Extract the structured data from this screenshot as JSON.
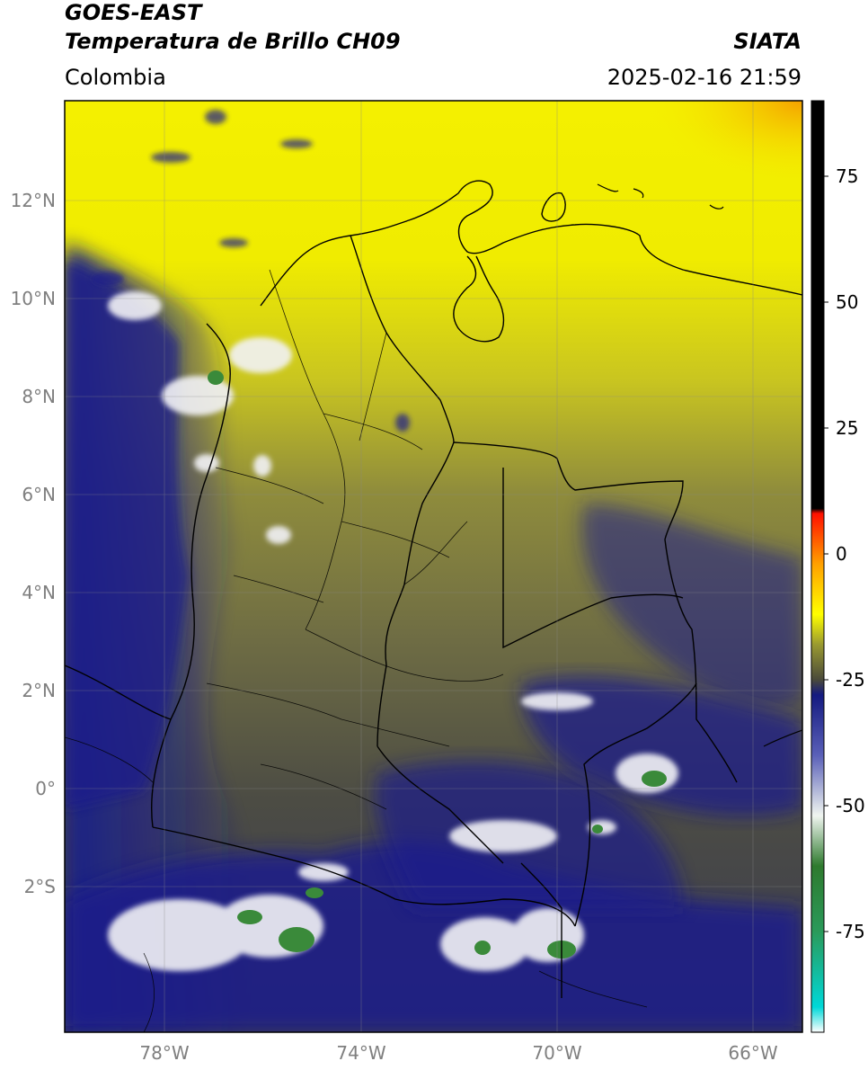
{
  "header": {
    "title_line1": "GOES-EAST",
    "title_line2": "Temperatura de Brillo CH09",
    "agency": "SIATA",
    "region": "Colombia",
    "datetime": "2025-02-16 21:59"
  },
  "map": {
    "lat_ticks": [
      "12°N",
      "10°N",
      "8°N",
      "6°N",
      "4°N",
      "2°N",
      "0°",
      "2°S"
    ],
    "lon_ticks": [
      "78°W",
      "74°W",
      "70°W",
      "66°W"
    ],
    "colors": {
      "yellow": "#f4f000",
      "olive": "#7d7a3c",
      "dark_olive": "#4a4a3a",
      "navy": "#1a1f8a",
      "white": "#f2f2f6",
      "green": "#3a8a3a",
      "orange": "#f4a000"
    }
  },
  "colorbar": {
    "labels": [
      "75",
      "50",
      "25",
      "0",
      "-25",
      "-50",
      "-75"
    ],
    "stops": [
      {
        "color": "#ffffff",
        "value": -95
      },
      {
        "color": "#00d8d8",
        "value": -90
      },
      {
        "color": "#2a9a5a",
        "value": -75
      },
      {
        "color": "#2e7a2e",
        "value": -62
      },
      {
        "color": "#f0f5f0",
        "value": -52
      },
      {
        "color": "#5a60b8",
        "value": -40
      },
      {
        "color": "#141a80",
        "value": -28
      },
      {
        "color": "#4a4a3a",
        "value": -25
      },
      {
        "color": "#9a9a30",
        "value": -18
      },
      {
        "color": "#ffff00",
        "value": -12
      },
      {
        "color": "#ffa000",
        "value": -2
      },
      {
        "color": "#ff1000",
        "value": 8
      },
      {
        "color": "#000000",
        "value": 9
      },
      {
        "color": "#000000",
        "value": 90
      }
    ]
  }
}
